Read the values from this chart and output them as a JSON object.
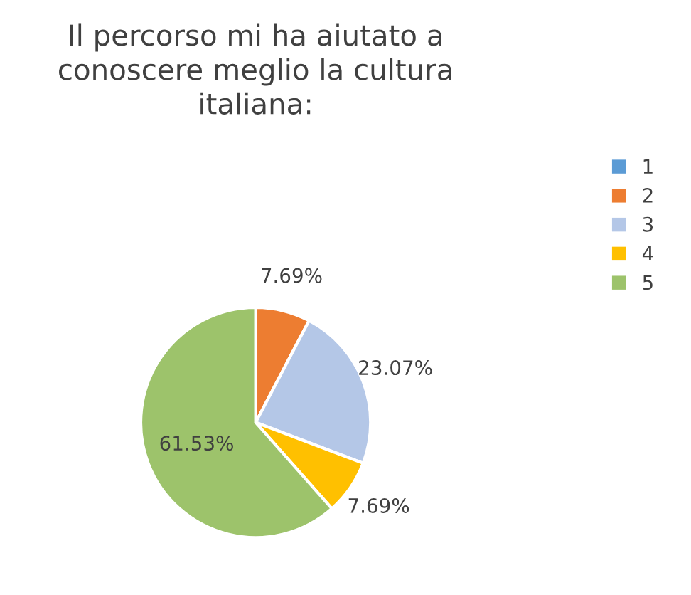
{
  "chart_data": {
    "type": "pie",
    "title": "Il percorso mi ha aiutato a\nconoscere meglio la cultura\nitaliana:",
    "categories": [
      "1",
      "2",
      "3",
      "4",
      "5"
    ],
    "values": [
      0,
      7.69,
      23.07,
      7.69,
      61.53
    ],
    "value_labels": [
      null,
      "7.69%",
      "23.07%",
      "7.69%",
      "61.53%"
    ],
    "colors": [
      "#5b9bd5",
      "#ed7d31",
      "#b4c7e7",
      "#ffc000",
      "#9dc36b"
    ],
    "legend": "right"
  }
}
